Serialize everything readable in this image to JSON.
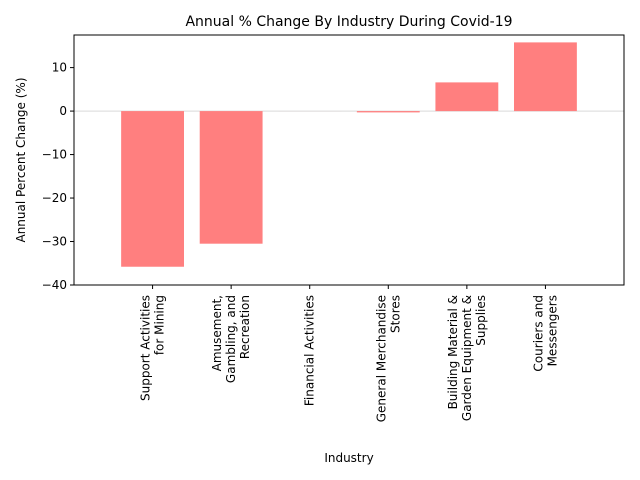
{
  "chart_data": {
    "type": "bar",
    "title": "Annual % Change By Industry During Covid-19",
    "xlabel": "Industry",
    "ylabel": "Annual Percent Change (%)",
    "categories": [
      "Support Activities\nfor Mining",
      "Amusement,\nGambling, and\nRecreation",
      "Financial Activities",
      "General Merchandise\nStores",
      "Building Material &\nGarden Equipment &\nSupplies",
      "Couriers and\nMessengers"
    ],
    "values": [
      -35.8,
      -30.5,
      0.0,
      -0.3,
      6.6,
      15.8
    ],
    "ylim": [
      -40,
      17.5
    ],
    "yticks": [
      -40,
      -30,
      -20,
      -10,
      0,
      10
    ],
    "ytick_labels": [
      "−40",
      "−30",
      "−20",
      "−10",
      "0",
      "10"
    ],
    "grid": false,
    "zero_line": true,
    "bar_color": "#ff7f7f",
    "zero_line_color": "#d9d9d9"
  }
}
